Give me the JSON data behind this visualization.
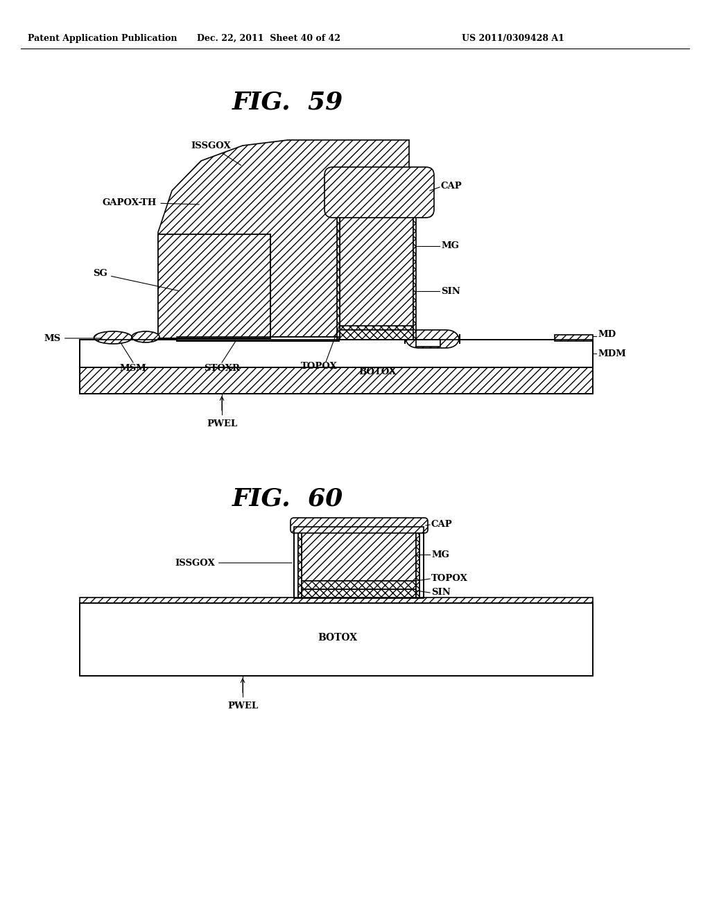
{
  "bg_color": "#ffffff",
  "header_left": "Patent Application Publication",
  "header_mid": "Dec. 22, 2011  Sheet 40 of 42",
  "header_right": "US 2011/0309428 A1",
  "fig59_title": "FIG.  59",
  "fig60_title": "FIG.  60",
  "line_color": "#000000"
}
